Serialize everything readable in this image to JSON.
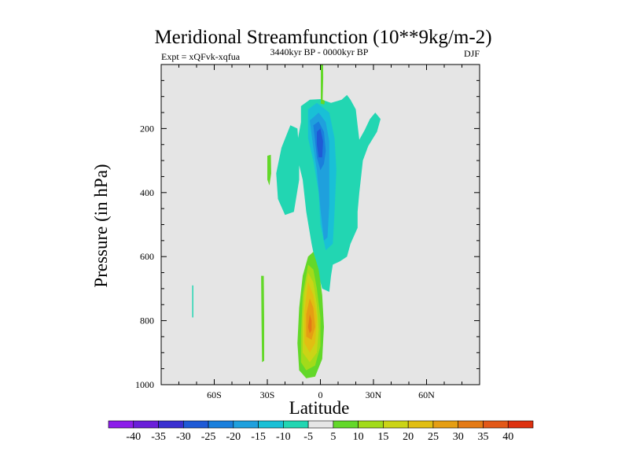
{
  "chart_data": {
    "type": "contour",
    "title": "Meridional Streamfunction (10**9kg/m-2)",
    "subtitle_left": "Expt = xQFvk-xqfua",
    "subtitle_center": "3440kyr BP - 0000kyr BP",
    "subtitle_right": "DJF",
    "xlabel": "Latitude",
    "ylabel": "Pressure (in hPa)",
    "xlim": [
      -90,
      90
    ],
    "ylim": [
      1000,
      0
    ],
    "x_ticks": [
      {
        "value": -60,
        "label": "60S"
      },
      {
        "value": -30,
        "label": "30S"
      },
      {
        "value": 0,
        "label": "0"
      },
      {
        "value": 30,
        "label": "30N"
      },
      {
        "value": 60,
        "label": "60N"
      }
    ],
    "y_ticks": [
      {
        "value": 200,
        "label": "200"
      },
      {
        "value": 400,
        "label": "400"
      },
      {
        "value": 600,
        "label": "600"
      },
      {
        "value": 800,
        "label": "800"
      },
      {
        "value": 1000,
        "label": "1000"
      }
    ],
    "background_color": "#e5e5e5",
    "colorbar": {
      "labels": [
        "-40",
        "-35",
        "-30",
        "-25",
        "-20",
        "-15",
        "-10",
        "-5",
        "5",
        "10",
        "15",
        "20",
        "25",
        "30",
        "35",
        "40"
      ],
      "colors": [
        "#8c1eea",
        "#6a1fd9",
        "#3a30d0",
        "#1f5ad6",
        "#1a7fdc",
        "#1fa0dd",
        "#19c0d6",
        "#22d6b2",
        "#e6e6e6",
        "#63d829",
        "#a2db1a",
        "#cbd416",
        "#e1be12",
        "#e59e13",
        "#e47a15",
        "#e25818",
        "#dd3110"
      ]
    },
    "contours": [
      {
        "name": "negative-region-upper",
        "level": -10,
        "color": "#22d6b2",
        "points": [
          [
            -11,
            130
          ],
          [
            -6,
            110
          ],
          [
            0,
            108
          ],
          [
            6,
            120
          ],
          [
            12,
            110
          ],
          [
            15,
            95
          ],
          [
            17,
            110
          ],
          [
            20,
            140
          ],
          [
            21,
            190
          ],
          [
            22,
            235
          ],
          [
            25,
            205
          ],
          [
            28,
            170
          ],
          [
            31,
            150
          ],
          [
            34,
            170
          ],
          [
            32,
            210
          ],
          [
            27,
            255
          ],
          [
            24,
            300
          ],
          [
            23,
            350
          ],
          [
            22,
            400
          ],
          [
            21,
            460
          ],
          [
            21,
            510
          ],
          [
            17,
            560
          ],
          [
            15,
            600
          ],
          [
            11,
            615
          ],
          [
            7,
            625
          ],
          [
            6,
            660
          ],
          [
            5,
            710
          ],
          [
            1,
            700
          ],
          [
            -2,
            640
          ],
          [
            -5,
            560
          ],
          [
            -8,
            460
          ],
          [
            -10,
            360
          ],
          [
            -14,
            270
          ],
          [
            -11,
            180
          ]
        ]
      },
      {
        "name": "negative-region-west",
        "level": -10,
        "color": "#22d6b2",
        "points": [
          [
            -17,
            190
          ],
          [
            -13,
            200
          ],
          [
            -12,
            280
          ],
          [
            -12,
            360
          ],
          [
            -15,
            460
          ],
          [
            -20,
            470
          ],
          [
            -24,
            420
          ],
          [
            -25,
            340
          ],
          [
            -22,
            260
          ]
        ]
      },
      {
        "name": "core-minus-15",
        "level": -15,
        "color": "#19c0d6",
        "points": [
          [
            -7,
            140
          ],
          [
            -2,
            120
          ],
          [
            5,
            150
          ],
          [
            8,
            230
          ],
          [
            9,
            330
          ],
          [
            8,
            460
          ],
          [
            7,
            560
          ],
          [
            3,
            580
          ],
          [
            0,
            500
          ],
          [
            -1,
            400
          ],
          [
            -4,
            300
          ],
          [
            -7,
            230
          ]
        ]
      },
      {
        "name": "core-minus-20",
        "level": -20,
        "color": "#1fa0dd",
        "points": [
          [
            -6,
            175
          ],
          [
            -1,
            150
          ],
          [
            3,
            180
          ],
          [
            5,
            240
          ],
          [
            5,
            330
          ],
          [
            5,
            440
          ],
          [
            4,
            540
          ],
          [
            2,
            550
          ],
          [
            0,
            450
          ],
          [
            -2,
            330
          ],
          [
            -4,
            260
          ]
        ]
      },
      {
        "name": "core-minus-25",
        "level": -25,
        "color": "#1a7fdc",
        "points": [
          [
            -4,
            190
          ],
          [
            -1,
            178
          ],
          [
            2,
            210
          ],
          [
            3,
            270
          ],
          [
            2,
            310
          ],
          [
            0,
            330
          ],
          [
            -2,
            290
          ]
        ]
      },
      {
        "name": "core-minus-30",
        "level": -30,
        "color": "#1f5ad6",
        "points": [
          [
            -2,
            210
          ],
          [
            0,
            200
          ],
          [
            1.5,
            240
          ],
          [
            1,
            290
          ],
          [
            -1,
            290
          ],
          [
            -2,
            250
          ]
        ]
      },
      {
        "name": "positive-cell",
        "level": 5,
        "color": "#63d829",
        "points": [
          [
            -7,
            600
          ],
          [
            -4,
            585
          ],
          [
            -1,
            640
          ],
          [
            1,
            720
          ],
          [
            2,
            820
          ],
          [
            1,
            920
          ],
          [
            -3,
            975
          ],
          [
            -8,
            980
          ],
          [
            -12,
            955
          ],
          [
            -13,
            870
          ],
          [
            -12,
            760
          ],
          [
            -10,
            660
          ]
        ]
      },
      {
        "name": "positive-cell-10",
        "level": 10,
        "color": "#a2db1a",
        "points": [
          [
            -7,
            625
          ],
          [
            -4,
            640
          ],
          [
            -2,
            700
          ],
          [
            0,
            790
          ],
          [
            0,
            880
          ],
          [
            -3,
            940
          ],
          [
            -8,
            955
          ],
          [
            -11,
            930
          ],
          [
            -11,
            840
          ],
          [
            -10,
            720
          ]
        ]
      },
      {
        "name": "positive-cell-15",
        "level": 15,
        "color": "#cbd416",
        "points": [
          [
            -7,
            650
          ],
          [
            -4,
            680
          ],
          [
            -2,
            750
          ],
          [
            -1,
            830
          ],
          [
            -2,
            900
          ],
          [
            -6,
            930
          ],
          [
            -10,
            900
          ],
          [
            -10,
            800
          ],
          [
            -9,
            710
          ]
        ]
      },
      {
        "name": "positive-cell-20",
        "level": 20,
        "color": "#e1be12",
        "points": [
          [
            -7,
            680
          ],
          [
            -4,
            720
          ],
          [
            -2,
            790
          ],
          [
            -3,
            870
          ],
          [
            -6,
            900
          ],
          [
            -9,
            870
          ],
          [
            -9,
            770
          ]
        ]
      },
      {
        "name": "positive-cell-25",
        "level": 25,
        "color": "#e59e13",
        "points": [
          [
            -6,
            730
          ],
          [
            -4,
            760
          ],
          [
            -3,
            820
          ],
          [
            -5,
            860
          ],
          [
            -8,
            850
          ],
          [
            -8,
            780
          ]
        ]
      },
      {
        "name": "positive-cell-30",
        "level": 30,
        "color": "#e47a15",
        "points": [
          [
            -6,
            780
          ],
          [
            -5,
            800
          ],
          [
            -5,
            830
          ],
          [
            -6,
            840
          ],
          [
            -7,
            820
          ]
        ]
      },
      {
        "name": "top-green-strip",
        "level": 5,
        "color": "#63d829",
        "points": [
          [
            0.2,
            0
          ],
          [
            1.5,
            0
          ],
          [
            1.6,
            40
          ],
          [
            1.3,
            110
          ],
          [
            2.5,
            113
          ],
          [
            2.2,
            125
          ],
          [
            0.2,
            122
          ]
        ]
      },
      {
        "name": "mid-west-green",
        "level": 5,
        "color": "#63d829",
        "points": [
          [
            -30,
            285
          ],
          [
            -28,
            282
          ],
          [
            -27.8,
            340
          ],
          [
            -28.8,
            378
          ],
          [
            -30,
            360
          ]
        ]
      },
      {
        "name": "lower-west-green",
        "level": 5,
        "color": "#63d829",
        "points": [
          [
            -33.5,
            660
          ],
          [
            -32,
            660
          ],
          [
            -31.8,
            800
          ],
          [
            -31.8,
            925
          ],
          [
            -33,
            930
          ],
          [
            -33.3,
            800
          ]
        ]
      },
      {
        "name": "far-west-cyan",
        "level": -5,
        "color": "#22d6b2",
        "points": [
          [
            -72.5,
            690
          ],
          [
            -71.8,
            690
          ],
          [
            -71.8,
            790
          ],
          [
            -72.5,
            790
          ]
        ]
      }
    ]
  }
}
